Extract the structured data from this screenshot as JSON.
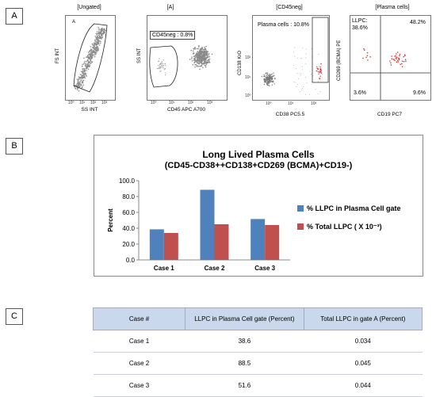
{
  "panels": {
    "a": "A",
    "b": "B",
    "c": "C"
  },
  "flow": {
    "plot1": {
      "title": "[Ungated]",
      "gate": "A",
      "ylabel": "FS INT",
      "xlabel": "SS INT",
      "ticks": [
        "10⁰",
        "10¹",
        "10²",
        "10³"
      ]
    },
    "plot2": {
      "title": "[A]",
      "gate": "CD45neg : 0.8%",
      "ylabel": "SS INT",
      "xlabel": "CD45 APC A700",
      "ticks": [
        "10⁰",
        "10¹",
        "10²",
        "10³"
      ]
    },
    "plot3": {
      "title": "[CD45neg]",
      "gate": "Plasma cells : 10.8%",
      "ylabel": "CD138 KrO",
      "xlabel": "CD38 PC5.5",
      "yticks": [
        "10²",
        "10¹",
        "10⁰"
      ],
      "xticks": [
        "10⁰",
        "10¹",
        "10²"
      ]
    },
    "plot4": {
      "title": "[Plasma cells]",
      "ylabel": "CD269 (BCMA) PE",
      "xlabel": "CD19 PC7",
      "q_ul_a": "LLPC:",
      "q_ul_b": "38.6%",
      "q_ur": "48.2%",
      "q_ll": "3.6%",
      "q_lr": "9.6%"
    }
  },
  "colors": {
    "blue": "#4f81bd",
    "red": "#c0504d",
    "header": "#c9d8ec"
  },
  "chart_data": {
    "type": "bar",
    "title": "Long Lived Plasma Cells",
    "subtitle": "(CD45-CD38++CD138+CD269 (BCMA)+CD19-)",
    "categories": [
      "Case 1",
      "Case 2",
      "Case 3"
    ],
    "series": [
      {
        "name": "% LLPC in Plasma Cell gate",
        "values": [
          38.6,
          88.5,
          51.6
        ]
      },
      {
        "name": "% Total LLPC (  X 10⁻³)",
        "values": [
          34,
          45,
          44
        ]
      }
    ],
    "ylabel": "Percent",
    "ylim": [
      0,
      100
    ],
    "yticks": [
      "0.0",
      "20.0",
      "40.0",
      "60.0",
      "80.0",
      "100.0"
    ],
    "ytick_values": [
      0,
      20,
      40,
      60,
      80,
      100
    ],
    "legend": "right",
    "grid": false
  },
  "table": {
    "headers": [
      "Case #",
      "LLPC in Plasma Cell gate (Percent)",
      "Total LLPC in gate A (Percent)"
    ],
    "rows": [
      [
        "Case 1",
        "38.6",
        "0.034"
      ],
      [
        "Case 2",
        "88.5",
        "0.045"
      ],
      [
        "Case 3",
        "51.6",
        "0.044"
      ]
    ]
  }
}
